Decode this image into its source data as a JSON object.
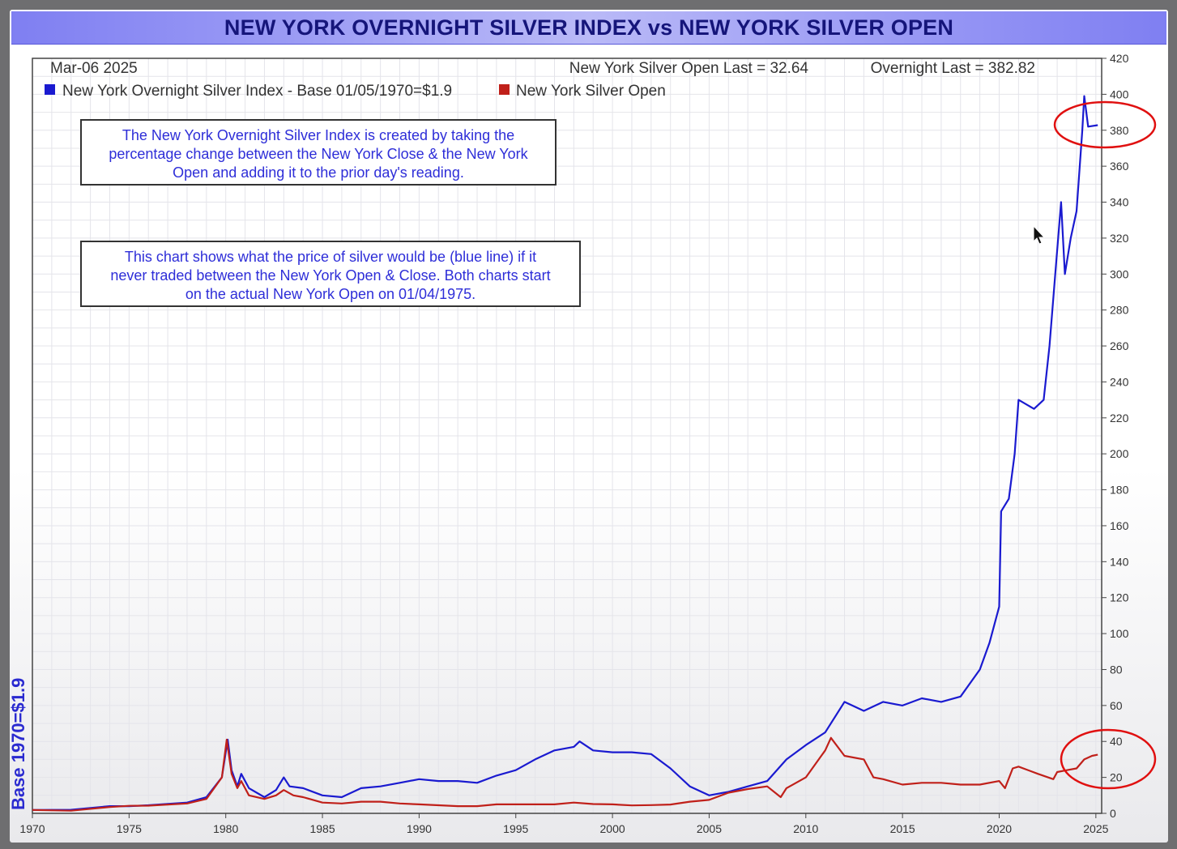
{
  "title": "NEW YORK OVERNIGHT SILVER INDEX vs NEW YORK SILVER OPEN",
  "header": {
    "date": "Mar-06  2025",
    "open_last": "New York Silver Open Last = 32.64",
    "overnight_last": "Overnight Last = 382.82"
  },
  "legend": [
    {
      "label": "New York Overnight Silver Index - Base 01/05/1970=$1.9",
      "color": "#1a1ad0"
    },
    {
      "label": "New York Silver Open",
      "color": "#c0201a"
    }
  ],
  "notes": [
    [
      "The New York Overnight Silver Index is created by taking the",
      "percentage change between the New York Close & the New York",
      "Open and adding it to the prior day's reading."
    ],
    [
      "This chart shows what the price of silver would be (blue line) if it",
      "never traded between the New York Open & Close. Both charts start",
      "on the actual New York Open on 01/04/1975."
    ]
  ],
  "y_axis_label": "Base 1970=$1.9",
  "chart_data": {
    "type": "line",
    "title": "NEW YORK OVERNIGHT SILVER INDEX vs NEW YORK SILVER OPEN",
    "ylabel": "Base 1970=$1.9",
    "xlabel": "",
    "xlim": [
      1970,
      2025.3
    ],
    "ylim": [
      0,
      420
    ],
    "x_ticks": [
      1970,
      1975,
      1980,
      1985,
      1990,
      1995,
      2000,
      2005,
      2010,
      2015,
      2020,
      2025
    ],
    "y_ticks": [
      0,
      20,
      40,
      60,
      80,
      100,
      120,
      140,
      160,
      180,
      200,
      220,
      240,
      260,
      280,
      300,
      320,
      340,
      360,
      380,
      400,
      420
    ],
    "grid": true,
    "legend_position": "top-left",
    "series": [
      {
        "name": "New York Overnight Silver Index - Base 01/05/1970=$1.9",
        "color": "#1a1ad0",
        "points": [
          [
            1970,
            1.9
          ],
          [
            1972,
            2
          ],
          [
            1974,
            4
          ],
          [
            1975,
            4
          ],
          [
            1976,
            4.5
          ],
          [
            1978,
            6
          ],
          [
            1979,
            9
          ],
          [
            1979.8,
            20
          ],
          [
            1980.1,
            41
          ],
          [
            1980.3,
            24
          ],
          [
            1980.6,
            15
          ],
          [
            1980.8,
            22
          ],
          [
            1981.2,
            14
          ],
          [
            1982,
            9
          ],
          [
            1982.6,
            13
          ],
          [
            1983,
            20
          ],
          [
            1983.3,
            15
          ],
          [
            1984,
            14
          ],
          [
            1985,
            10
          ],
          [
            1986,
            9
          ],
          [
            1987,
            14
          ],
          [
            1988,
            15
          ],
          [
            1989,
            17
          ],
          [
            1990,
            19
          ],
          [
            1991,
            18
          ],
          [
            1992,
            18
          ],
          [
            1993,
            17
          ],
          [
            1994,
            21
          ],
          [
            1995,
            24
          ],
          [
            1996,
            30
          ],
          [
            1997,
            35
          ],
          [
            1998,
            37
          ],
          [
            1998.3,
            40
          ],
          [
            1999,
            35
          ],
          [
            2000,
            34
          ],
          [
            2001,
            34
          ],
          [
            2002,
            33
          ],
          [
            2003,
            25
          ],
          [
            2004,
            15
          ],
          [
            2005,
            10
          ],
          [
            2006,
            12
          ],
          [
            2007,
            15
          ],
          [
            2008,
            18
          ],
          [
            2009,
            30
          ],
          [
            2010,
            38
          ],
          [
            2011,
            45
          ],
          [
            2012,
            62
          ],
          [
            2013,
            57
          ],
          [
            2014,
            62
          ],
          [
            2015,
            60
          ],
          [
            2016,
            64
          ],
          [
            2017,
            62
          ],
          [
            2018,
            65
          ],
          [
            2019,
            80
          ],
          [
            2019.5,
            95
          ],
          [
            2020,
            115
          ],
          [
            2020.1,
            168
          ],
          [
            2020.5,
            175
          ],
          [
            2020.8,
            200
          ],
          [
            2021,
            230
          ],
          [
            2021.8,
            225
          ],
          [
            2022.3,
            230
          ],
          [
            2022.6,
            260
          ],
          [
            2022.9,
            300
          ],
          [
            2023.2,
            340
          ],
          [
            2023.4,
            300
          ],
          [
            2023.7,
            320
          ],
          [
            2024,
            335
          ],
          [
            2024.3,
            380
          ],
          [
            2024.4,
            399
          ],
          [
            2024.6,
            382
          ],
          [
            2025.1,
            382.82
          ]
        ]
      },
      {
        "name": "New York Silver Open",
        "color": "#c0201a",
        "points": [
          [
            1970,
            1.9
          ],
          [
            1972,
            1.5
          ],
          [
            1974,
            3.5
          ],
          [
            1975,
            4.2
          ],
          [
            1976,
            4.3
          ],
          [
            1978,
            5.5
          ],
          [
            1979,
            8
          ],
          [
            1979.8,
            20
          ],
          [
            1980.05,
            41
          ],
          [
            1980.3,
            22
          ],
          [
            1980.6,
            14
          ],
          [
            1980.8,
            18
          ],
          [
            1981.2,
            10
          ],
          [
            1982,
            8
          ],
          [
            1982.6,
            10
          ],
          [
            1983,
            13
          ],
          [
            1983.5,
            10
          ],
          [
            1984,
            9
          ],
          [
            1985,
            6
          ],
          [
            1986,
            5.5
          ],
          [
            1987,
            6.5
          ],
          [
            1988,
            6.5
          ],
          [
            1989,
            5.5
          ],
          [
            1990,
            5
          ],
          [
            1991,
            4.5
          ],
          [
            1992,
            4
          ],
          [
            1993,
            4
          ],
          [
            1994,
            5
          ],
          [
            1995,
            5
          ],
          [
            1996,
            5
          ],
          [
            1997,
            5
          ],
          [
            1998,
            6
          ],
          [
            1999,
            5.2
          ],
          [
            2000,
            5
          ],
          [
            2001,
            4.4
          ],
          [
            2002,
            4.6
          ],
          [
            2003,
            4.9
          ],
          [
            2004,
            6.5
          ],
          [
            2005,
            7.5
          ],
          [
            2006,
            11.5
          ],
          [
            2007,
            13.5
          ],
          [
            2008,
            15
          ],
          [
            2008.7,
            9
          ],
          [
            2009,
            14
          ],
          [
            2010,
            20
          ],
          [
            2011,
            35
          ],
          [
            2011.3,
            42
          ],
          [
            2012,
            32
          ],
          [
            2013,
            30
          ],
          [
            2013.5,
            20
          ],
          [
            2014,
            19
          ],
          [
            2015,
            16
          ],
          [
            2016,
            17
          ],
          [
            2017,
            17
          ],
          [
            2018,
            16
          ],
          [
            2019,
            16
          ],
          [
            2020,
            18
          ],
          [
            2020.3,
            14
          ],
          [
            2020.7,
            25
          ],
          [
            2021,
            26
          ],
          [
            2022,
            22
          ],
          [
            2022.8,
            19
          ],
          [
            2023,
            23
          ],
          [
            2023.5,
            24
          ],
          [
            2024,
            25
          ],
          [
            2024.4,
            30
          ],
          [
            2024.8,
            32
          ],
          [
            2025.1,
            32.64
          ]
        ]
      }
    ]
  }
}
